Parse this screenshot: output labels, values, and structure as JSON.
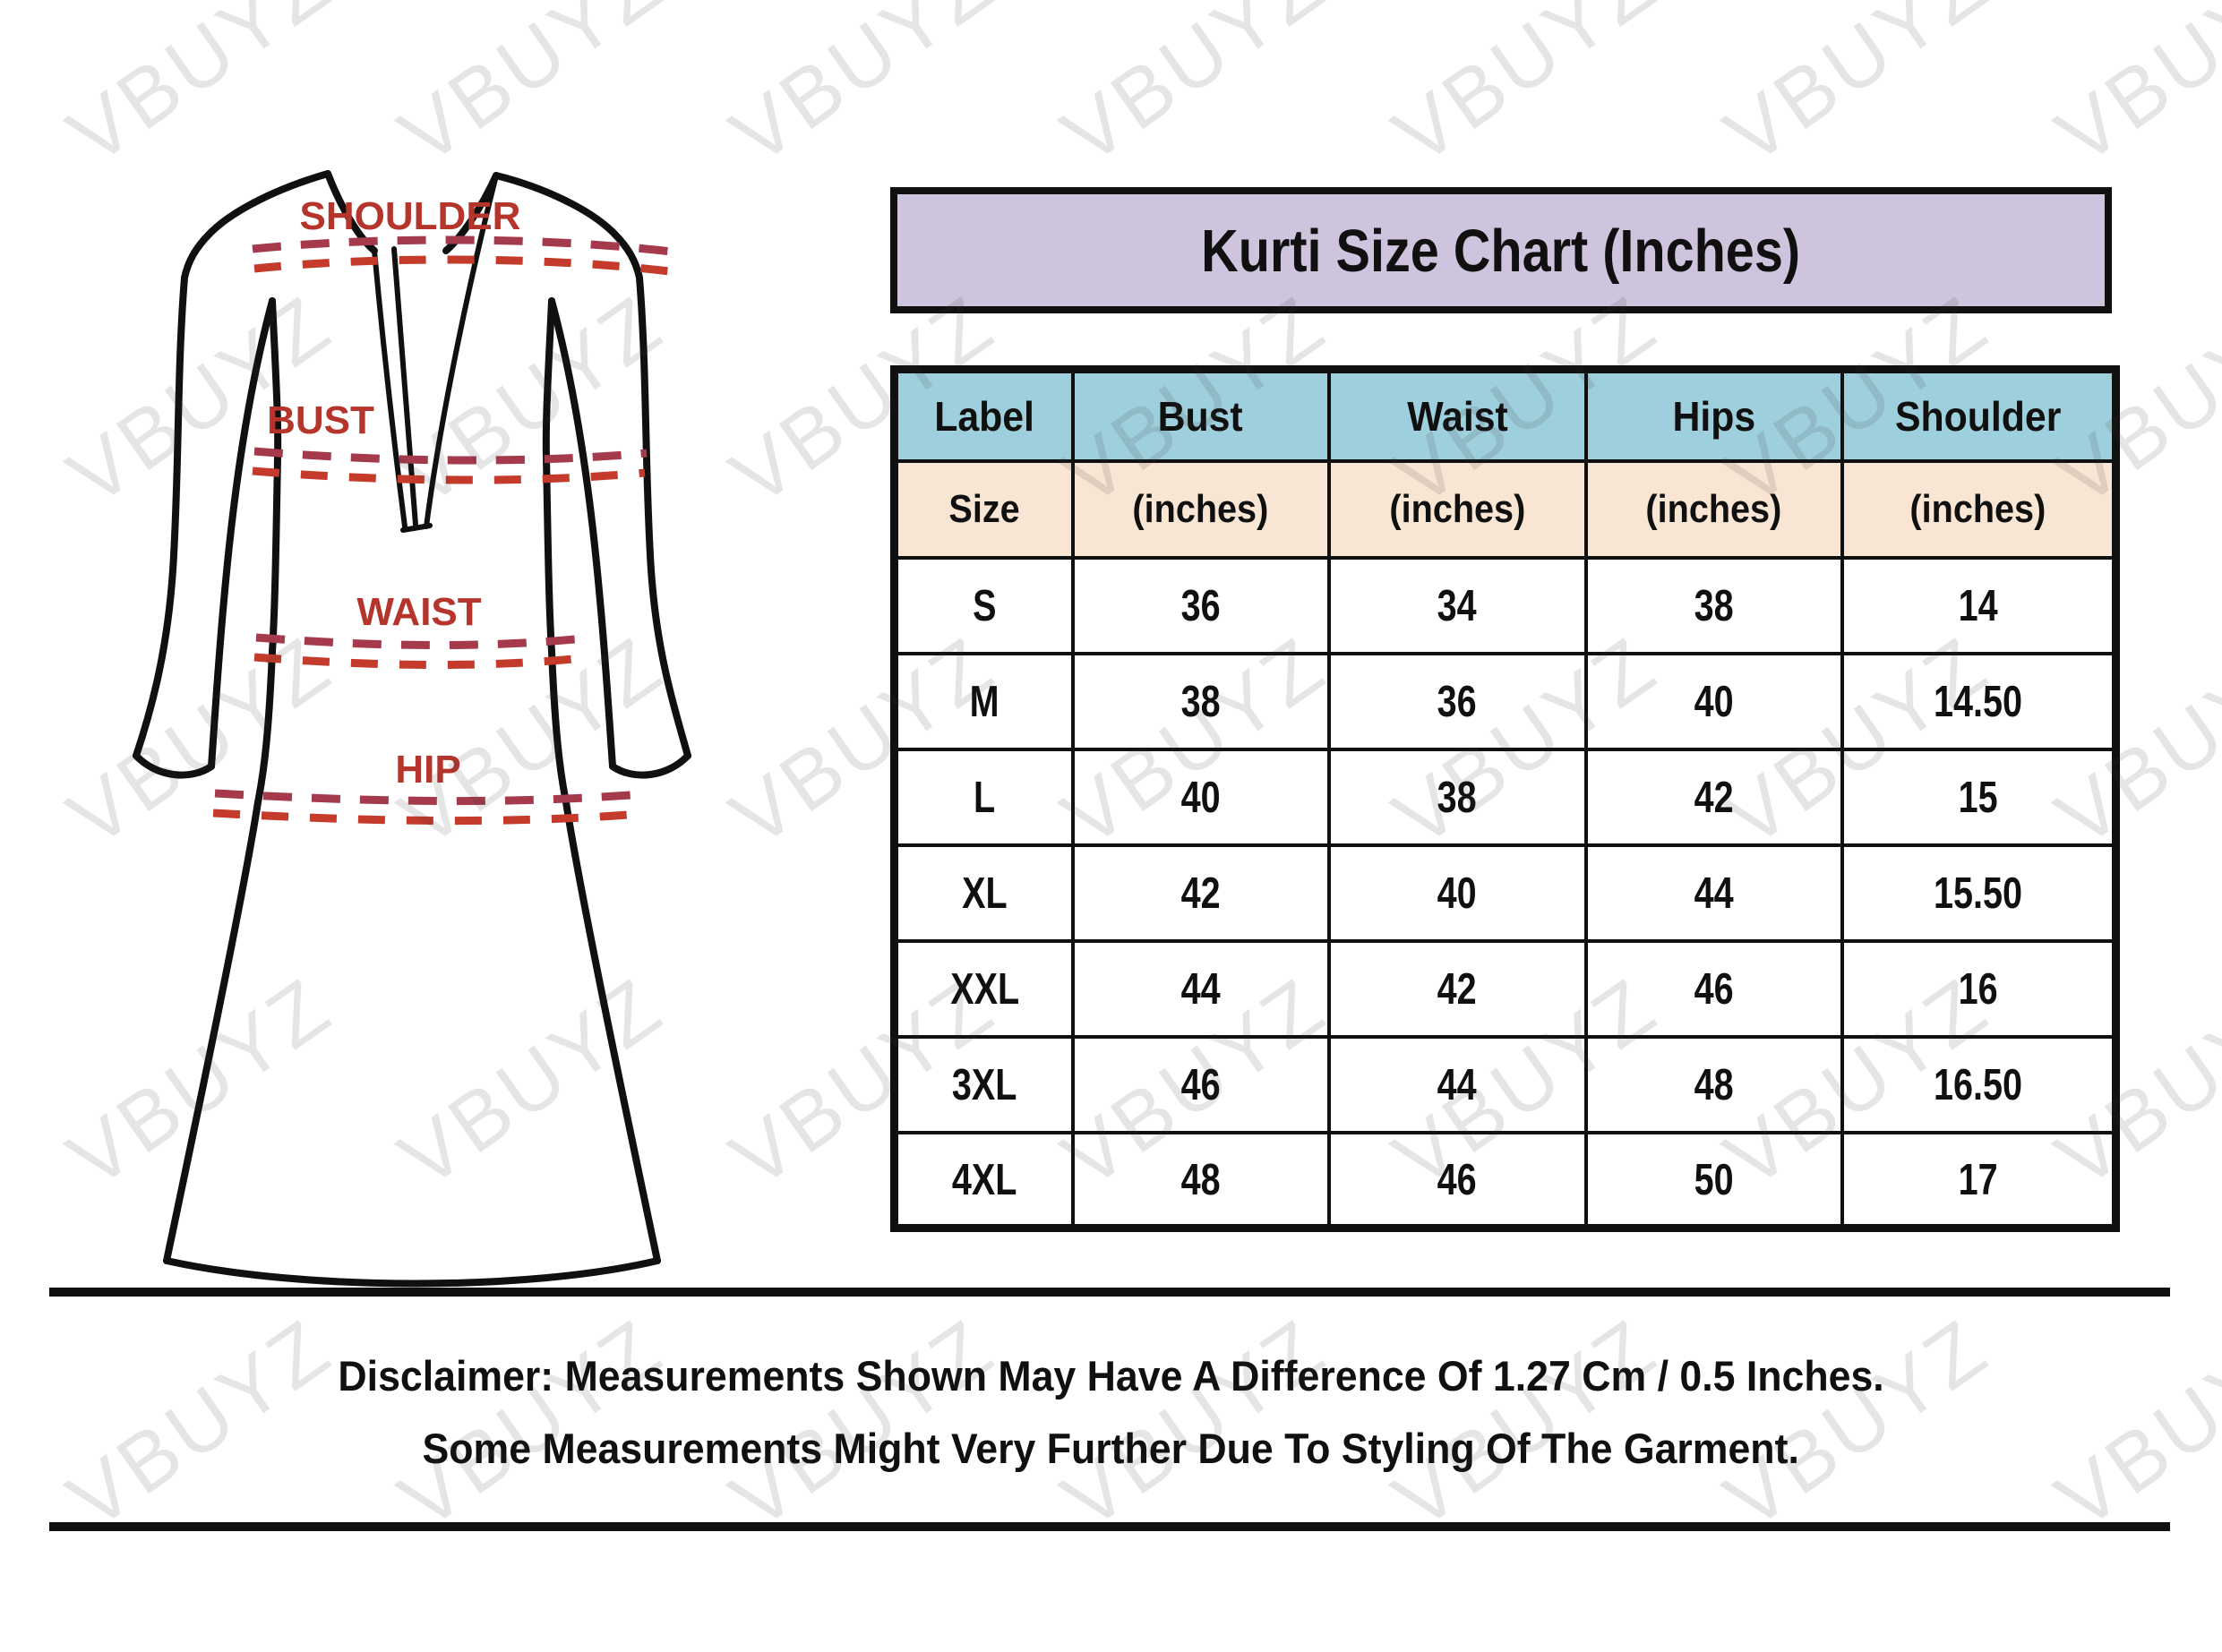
{
  "title": "Kurti Size Chart (Inches)",
  "watermark": {
    "text": "VBUYZ"
  },
  "garment": {
    "labels": {
      "shoulder": "SHOULDER",
      "bust": "BUST",
      "waist": "WAIST",
      "hip": "HIP"
    }
  },
  "table": {
    "columns": [
      "Label",
      "Bust",
      "Waist",
      "Hips",
      "Shoulder"
    ],
    "units_row": [
      "Size",
      "(inches)",
      "(inches)",
      "(inches)",
      "(inches)"
    ],
    "rows": [
      [
        "S",
        "36",
        "34",
        "38",
        "14"
      ],
      [
        "M",
        "38",
        "36",
        "40",
        "14.50"
      ],
      [
        "L",
        "40",
        "38",
        "42",
        "15"
      ],
      [
        "XL",
        "42",
        "40",
        "44",
        "15.50"
      ],
      [
        "XXL",
        "44",
        "42",
        "46",
        "16"
      ],
      [
        "3XL",
        "46",
        "44",
        "48",
        "16.50"
      ],
      [
        "4XL",
        "48",
        "46",
        "50",
        "17"
      ]
    ]
  },
  "disclaimer": {
    "line1": "Disclaimer: Measurements Shown May Have A Difference Of 1.27 Cm / 0.5 Inches.",
    "line2": "Some Measurements Might Very Further Due To Styling Of The Garment."
  },
  "colors": {
    "title_bg": "#cfc4dd",
    "header_bg": "#9ecfdc",
    "units_bg": "#f9e5d3",
    "label_red": "#b5352c",
    "dash_dark": "#a43a4c",
    "dash_red": "#c43b2b",
    "ink": "#101010"
  }
}
